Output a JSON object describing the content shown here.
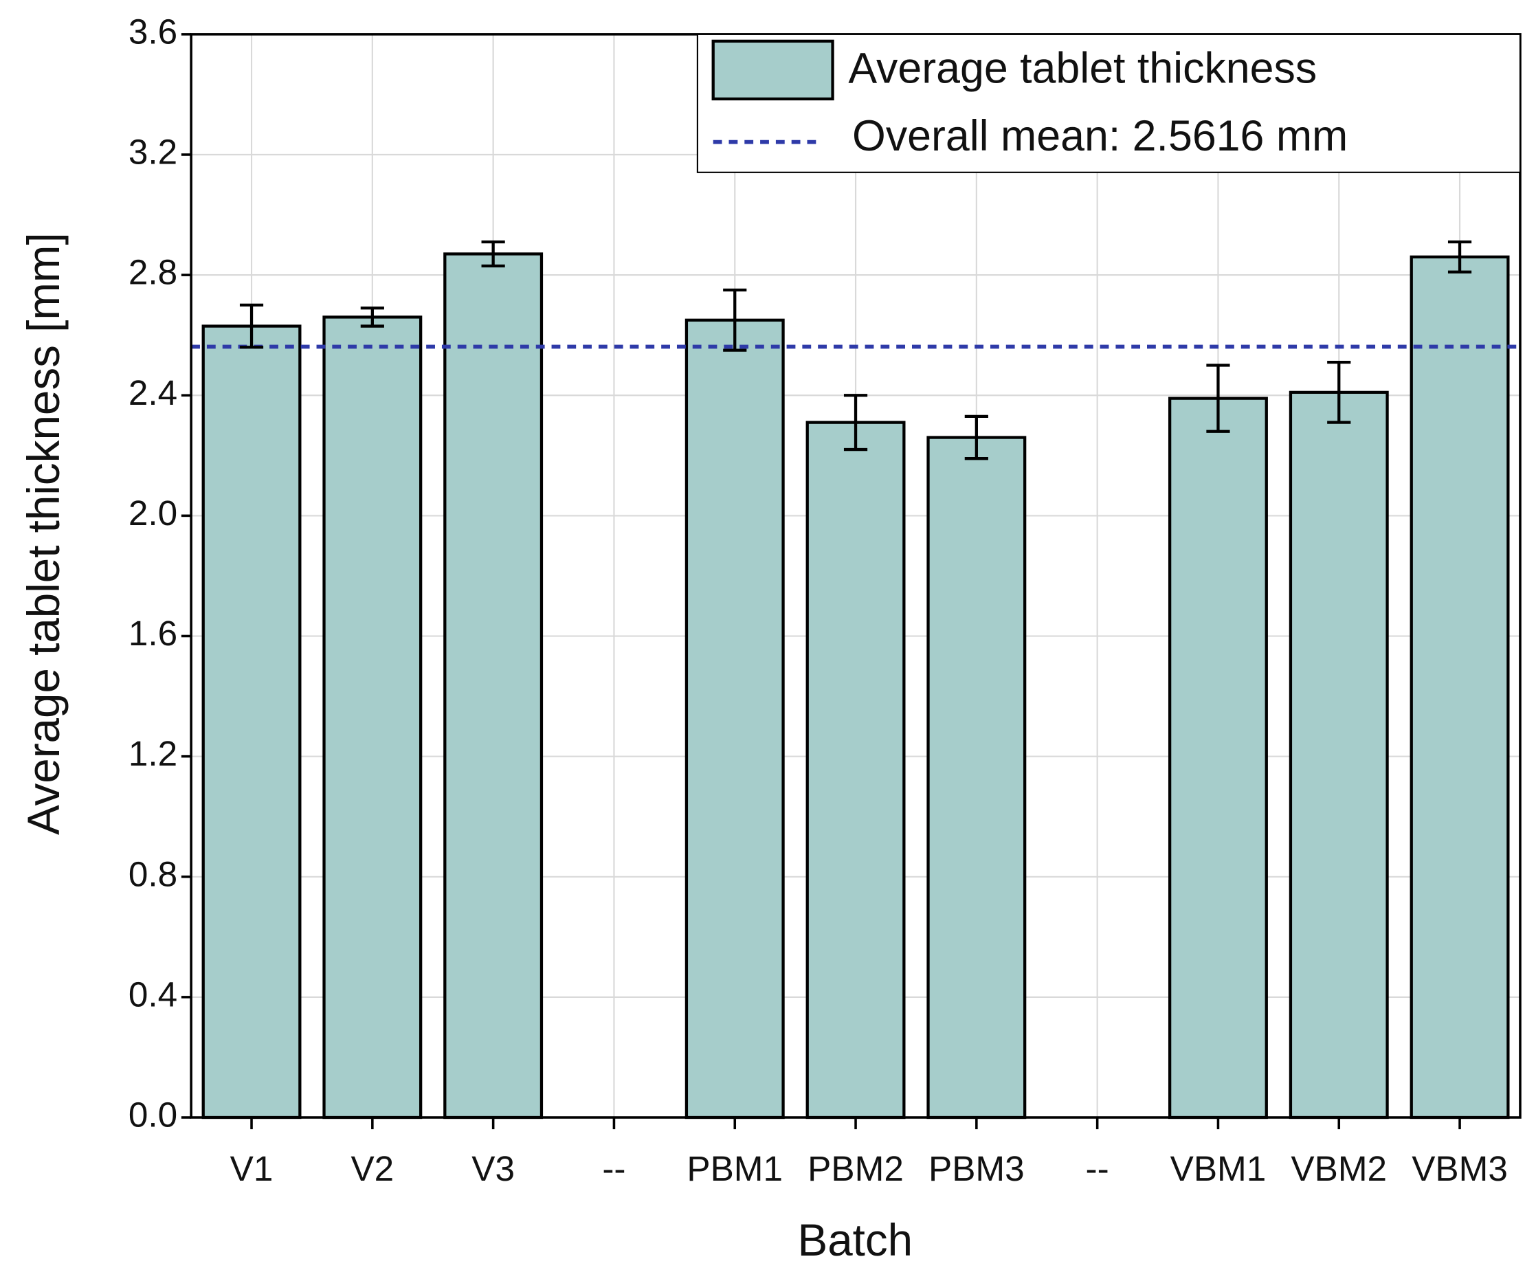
{
  "chart_data": {
    "type": "bar",
    "x_label": "Batch",
    "y_label": "Average tablet thickness  [mm]",
    "categories": [
      "V1",
      "V2",
      "V3",
      "--",
      "PBM1",
      "PBM2",
      "PBM3",
      "--",
      "VBM1",
      "VBM2",
      "VBM3"
    ],
    "series": [
      {
        "name": "Average tablet thickness",
        "color": "#a6cdcb",
        "values": [
          2.63,
          2.66,
          2.87,
          null,
          2.65,
          2.31,
          2.26,
          null,
          2.39,
          2.41,
          2.86
        ],
        "errors": [
          0.07,
          0.03,
          0.04,
          null,
          0.1,
          0.09,
          0.07,
          null,
          0.11,
          0.1,
          0.05
        ]
      }
    ],
    "reference_line": {
      "name": "Overall mean: 2.5616 mm",
      "value": 2.5616,
      "color": "#2e3aa8"
    },
    "ylim": [
      0,
      3.6
    ],
    "yticks": [
      {
        "value": 0,
        "label": "0.0"
      },
      0.4,
      0.8,
      1.2,
      1.6,
      {
        "value": 2,
        "label": "2.0"
      },
      2.4,
      2.8,
      3.2,
      3.6
    ],
    "grid": true,
    "legend": "top-right"
  }
}
